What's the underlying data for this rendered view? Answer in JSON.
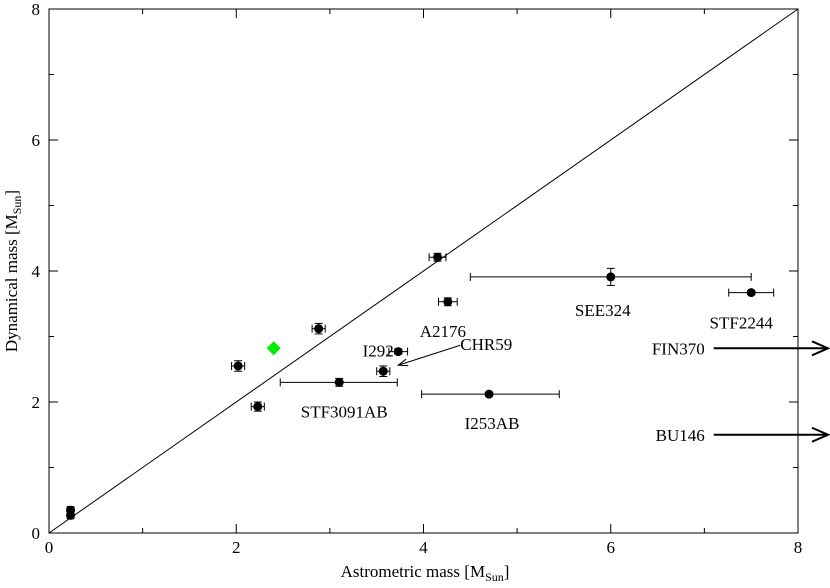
{
  "chart_data": {
    "type": "scatter",
    "title": "",
    "xlabel": "Astrometric mass [M",
    "xlabel_sub": "Sun",
    "xlabel_end": "]",
    "ylabel": "Dynamical mass [M",
    "ylabel_sub": "Sun",
    "ylabel_end": "]",
    "xlim": [
      0,
      8
    ],
    "ylim": [
      0,
      8
    ],
    "x_ticks": [
      0,
      2,
      4,
      6,
      8
    ],
    "y_ticks": [
      0,
      2,
      4,
      6,
      8
    ],
    "x_tick_labels": [
      "0",
      "2",
      "4",
      "6",
      "8"
    ],
    "y_tick_labels": [
      "0",
      "2",
      "4",
      "6",
      "8"
    ],
    "grid": false,
    "legend": "none",
    "reference_line": {
      "type": "y = x",
      "color": "#000000"
    },
    "series": [
      {
        "color": "#000000",
        "marker": "circle",
        "points": [
          {
            "x": 0.23,
            "y": 0.35,
            "xerr": 0.03,
            "yerr": 0.05,
            "label": ""
          },
          {
            "x": 0.23,
            "y": 0.27,
            "xerr": 0.03,
            "yerr": 0.05,
            "label": ""
          },
          {
            "x": 2.02,
            "y": 2.55,
            "xerr": 0.07,
            "yerr": 0.08,
            "label": ""
          },
          {
            "x": 2.23,
            "y": 1.93,
            "xerr": 0.07,
            "yerr": 0.07,
            "label": ""
          },
          {
            "x": 2.88,
            "y": 3.12,
            "xerr": 0.07,
            "yerr": 0.08,
            "label": ""
          },
          {
            "x": 3.1,
            "y": 2.3,
            "xerr_lo": 0.63,
            "xerr_hi": 0.62,
            "yerr": 0.06,
            "label": "STF3091AB"
          },
          {
            "x": 3.57,
            "y": 2.47,
            "xerr": 0.07,
            "yerr": 0.08,
            "label": "CHR59"
          },
          {
            "x": 3.73,
            "y": 2.77,
            "xerr": 0.1,
            "yerr": 0.04,
            "label": "I292"
          },
          {
            "x": 4.15,
            "y": 4.21,
            "xerr": 0.09,
            "yerr": 0.06,
            "label": ""
          },
          {
            "x": 4.26,
            "y": 3.53,
            "xerr": 0.1,
            "yerr": 0.06,
            "label": "A2176"
          },
          {
            "x": 4.7,
            "y": 2.12,
            "xerr_lo": 0.72,
            "xerr_hi": 0.75,
            "yerr": 0.03,
            "label": "I253AB"
          },
          {
            "x": 6.0,
            "y": 3.91,
            "xerr_lo": 1.5,
            "xerr_hi": 1.5,
            "yerr": 0.13,
            "label": "SEE324"
          },
          {
            "x": 7.5,
            "y": 3.67,
            "xerr": 0.24,
            "yerr": 0.03,
            "label": "STF2244"
          }
        ]
      },
      {
        "color": "#00ee00",
        "marker": "diamond",
        "points": [
          {
            "x": 2.4,
            "y": 2.82,
            "label": ""
          }
        ]
      }
    ],
    "off_scale": [
      {
        "label": "FIN370",
        "y": 2.82,
        "x_start": 7.1,
        "x_end": 8.35
      },
      {
        "label": "BU146",
        "y": 1.5,
        "x_start": 7.1,
        "x_end": 8.35
      }
    ]
  }
}
